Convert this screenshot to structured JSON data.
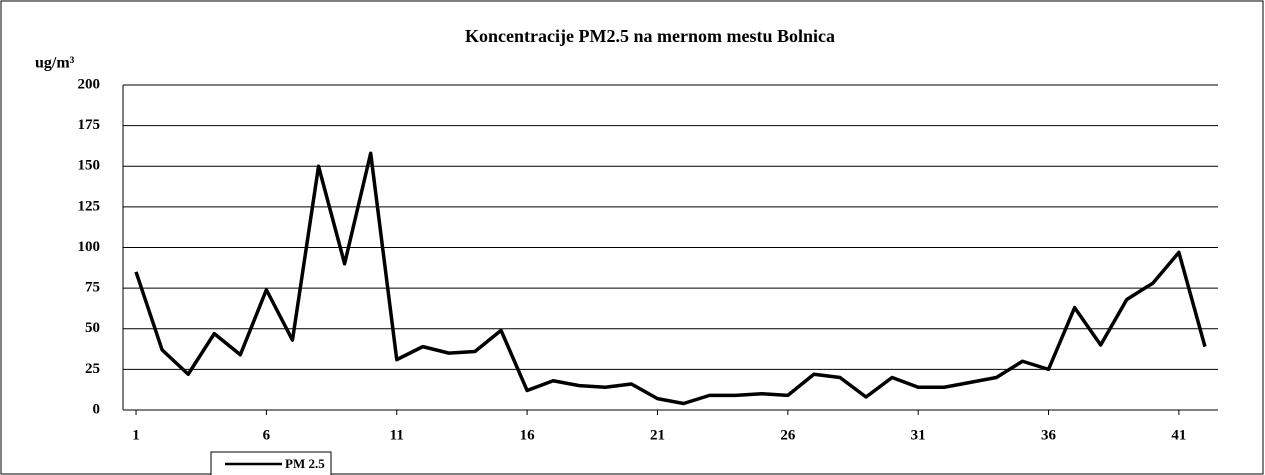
{
  "chart_data": {
    "type": "line",
    "title": "Koncentracije PM2.5 na mernom mestu Bolnica",
    "y_label": "ug/m³",
    "x": [
      1,
      2,
      3,
      4,
      5,
      6,
      7,
      8,
      9,
      10,
      11,
      12,
      13,
      14,
      15,
      16,
      17,
      18,
      19,
      20,
      21,
      22,
      23,
      24,
      25,
      26,
      27,
      28,
      29,
      30,
      31,
      32,
      33,
      34,
      35,
      36,
      37,
      38,
      39,
      40,
      41,
      42
    ],
    "series": [
      {
        "name": "PM 2.5",
        "color": "#000000",
        "values": [
          85,
          37,
          22,
          47,
          34,
          74,
          43,
          150,
          90,
          158,
          31,
          39,
          35,
          36,
          49,
          12,
          18,
          15,
          14,
          16,
          7,
          4,
          9,
          9,
          10,
          9,
          22,
          20,
          8,
          20,
          14,
          14,
          17,
          20,
          30,
          25,
          63,
          40,
          68,
          78,
          97,
          39
        ]
      }
    ],
    "xlim": [
      0.5,
      42.5
    ],
    "xticks": [
      1,
      6,
      11,
      16,
      21,
      26,
      31,
      36,
      41
    ],
    "ylim": [
      0,
      200
    ],
    "yticks": [
      0,
      25,
      50,
      75,
      100,
      125,
      150,
      175,
      200
    ],
    "grid": true,
    "legend": "bottom-left"
  }
}
